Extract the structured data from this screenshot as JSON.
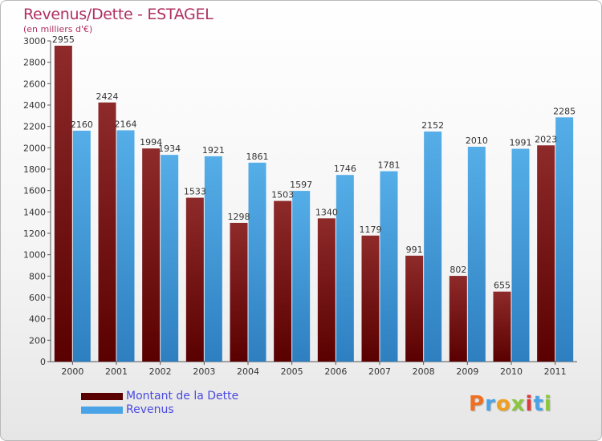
{
  "chart_data": {
    "type": "bar",
    "title": "Revenus/Dette - ESTAGEL",
    "subtitle": "(en milliers d'€)",
    "categories": [
      "2000",
      "2001",
      "2002",
      "2003",
      "2004",
      "2005",
      "2006",
      "2007",
      "2008",
      "2009",
      "2010",
      "2011"
    ],
    "series": [
      {
        "name": "Montant de la Dette",
        "color": "#8b1a1a",
        "values": [
          2955,
          2424,
          1994,
          1533,
          1298,
          1503,
          1340,
          1179,
          991,
          802,
          655,
          2023
        ]
      },
      {
        "name": "Revenus",
        "color": "#4aa3e6",
        "values": [
          2160,
          2164,
          1934,
          1921,
          1861,
          1597,
          1746,
          1781,
          2152,
          2010,
          1991,
          2285
        ]
      }
    ],
    "y_ticks": [
      0,
      200,
      400,
      600,
      800,
      1000,
      1200,
      1400,
      1600,
      1800,
      2000,
      2200,
      2400,
      2600,
      2800,
      3000
    ],
    "ylim": [
      0,
      3000
    ],
    "grid": false,
    "legend_position": "bottom-left"
  },
  "brand": {
    "letters": [
      "P",
      "r",
      "o",
      "x",
      "i",
      "t",
      "i"
    ],
    "colors": [
      "#f07020",
      "#4aa3e6",
      "#f0a020",
      "#8cc63f",
      "#e03a3a",
      "#4aa3e6",
      "#8cc63f"
    ]
  }
}
